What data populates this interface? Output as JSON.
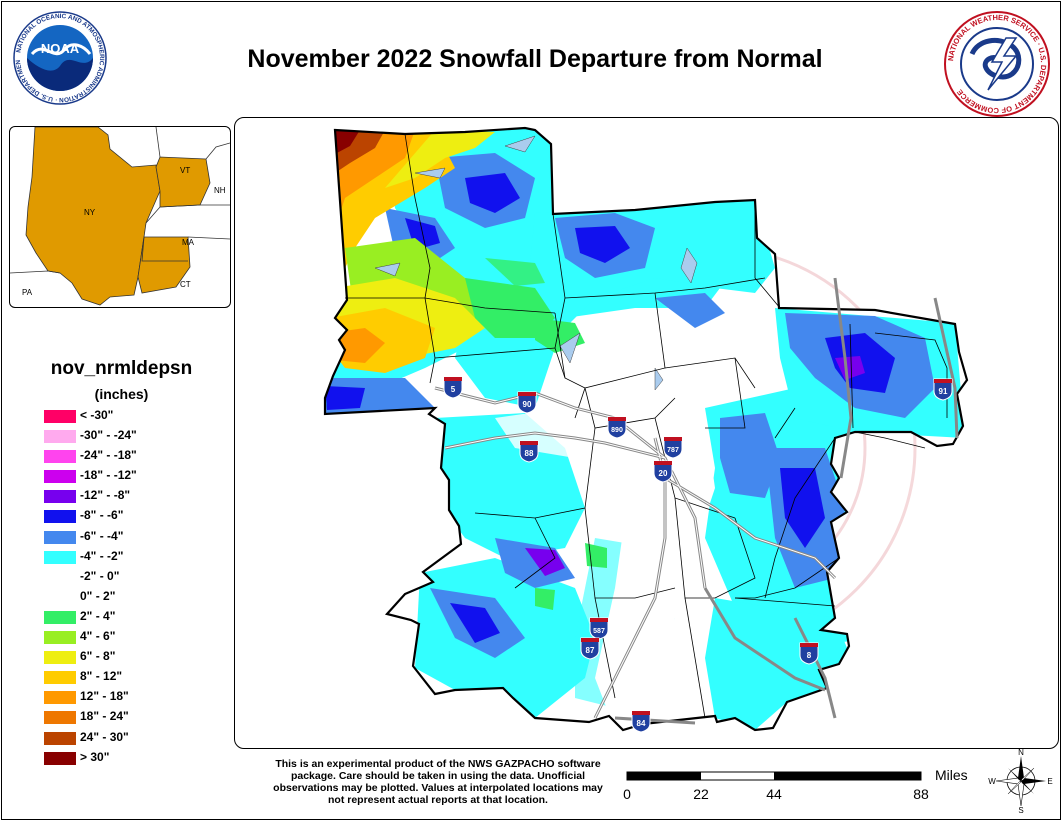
{
  "title": "November 2022 Snowfall Departure from Normal",
  "logos": {
    "noaa_center": "NOAA",
    "noaa_ring": "NATIONAL OCEANIC AND ATMOSPHERIC ADMINISTRATION · U.S. DEPARTMENT OF COMMERCE",
    "nws_ring": "NATIONAL WEATHER SERVICE · U.S. DEPARTMENT OF COMMERCE"
  },
  "inset": {
    "states": [
      "VT",
      "NH",
      "NY",
      "MA",
      "CT",
      "PA"
    ],
    "highlight_color": "#e0a000"
  },
  "legend": {
    "title": "nov_nrmldepsn",
    "units": "(inches)",
    "items": [
      {
        "label": "< -30\"",
        "color": "#ff0066"
      },
      {
        "label": "-30\" - -24\"",
        "color": "#ffaaee"
      },
      {
        "label": "-24\" - -18\"",
        "color": "#ff44ee"
      },
      {
        "label": "-18\" - -12\"",
        "color": "#cc00ee"
      },
      {
        "label": "-12\" - -8\"",
        "color": "#7700ee"
      },
      {
        "label": "-8\" - -6\"",
        "color": "#1111ee"
      },
      {
        "label": "-6\" - -4\"",
        "color": "#4488ee"
      },
      {
        "label": "-4\" - -2\"",
        "color": "#33ffff"
      },
      {
        "label": "-2\" - 0\"",
        "color": "#ffffff"
      },
      {
        "label": "0\" - 2\"",
        "color": "#ffffff"
      },
      {
        "label": "2\" - 4\"",
        "color": "#33ee66"
      },
      {
        "label": "4\" - 6\"",
        "color": "#99ee22"
      },
      {
        "label": "6\" - 8\"",
        "color": "#eeee11"
      },
      {
        "label": "8\" - 12\"",
        "color": "#ffcc00"
      },
      {
        "label": "12\" - 18\"",
        "color": "#ff9900"
      },
      {
        "label": "18\" - 24\"",
        "color": "#ee7700"
      },
      {
        "label": "24\" - 30\"",
        "color": "#bb4400"
      },
      {
        "label": "> 30\"",
        "color": "#880000"
      }
    ]
  },
  "highways": [
    "5",
    "90",
    "890",
    "88",
    "787",
    "20",
    "587",
    "87",
    "84",
    "91",
    "8"
  ],
  "watermark": "NATIONAL WEATHER SERVICE · U.S. DEPARTMENT OF COMMERCE",
  "disclaimer": "This is an experimental product of the NWS GAZPACHO software package. Care should be taken in using the data. Unofficial observations may be plotted. Values at interpolated locations may not represent actual reports at that location.",
  "scale": {
    "unit": "Miles",
    "ticks": [
      "0",
      "22",
      "44",
      "88"
    ]
  },
  "compass": {
    "n": "N",
    "s": "S",
    "e": "E",
    "w": "W"
  }
}
